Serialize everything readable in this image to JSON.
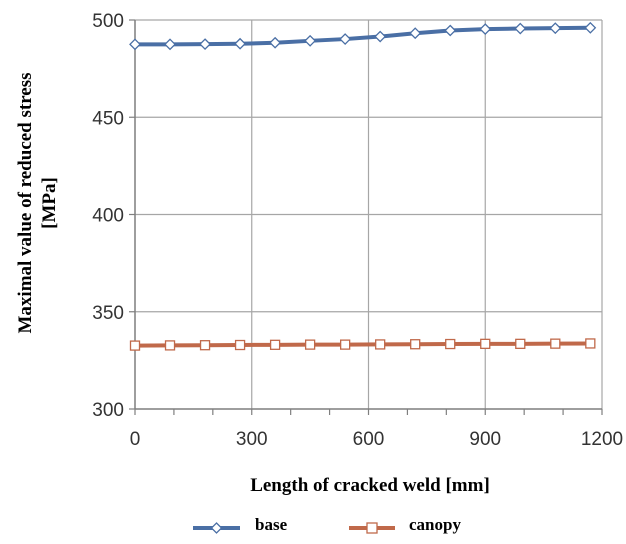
{
  "chart_data": {
    "type": "line",
    "title": "",
    "xlabel": "Length of cracked weld [mm]",
    "ylabel_lines": [
      "Maximal value of reduced stress",
      "[MPa]"
    ],
    "xlim": [
      0,
      1200
    ],
    "ylim": [
      300,
      500
    ],
    "xticks": [
      "0",
      "300",
      "600",
      "900",
      "1200"
    ],
    "yticks": [
      "300",
      "350",
      "400",
      "450",
      "500"
    ],
    "grid": "vertical and horizontal major gridlines",
    "legend_position": "bottom",
    "x": [
      0,
      90,
      180,
      270,
      360,
      450,
      540,
      630,
      720,
      810,
      900,
      990,
      1080,
      1170
    ],
    "series": [
      {
        "name": "base",
        "color": "#4a6fa5",
        "marker": "diamond",
        "values": [
          487.5,
          487.5,
          487.6,
          487.8,
          488.3,
          489.3,
          490.2,
          491.5,
          493.2,
          494.6,
          495.3,
          495.6,
          495.8,
          496.0
        ]
      },
      {
        "name": "canopy",
        "color": "#c0694a",
        "marker": "square",
        "values": [
          332.6,
          332.7,
          332.8,
          332.9,
          333.0,
          333.1,
          333.1,
          333.2,
          333.3,
          333.4,
          333.5,
          333.5,
          333.6,
          333.7
        ]
      }
    ]
  }
}
